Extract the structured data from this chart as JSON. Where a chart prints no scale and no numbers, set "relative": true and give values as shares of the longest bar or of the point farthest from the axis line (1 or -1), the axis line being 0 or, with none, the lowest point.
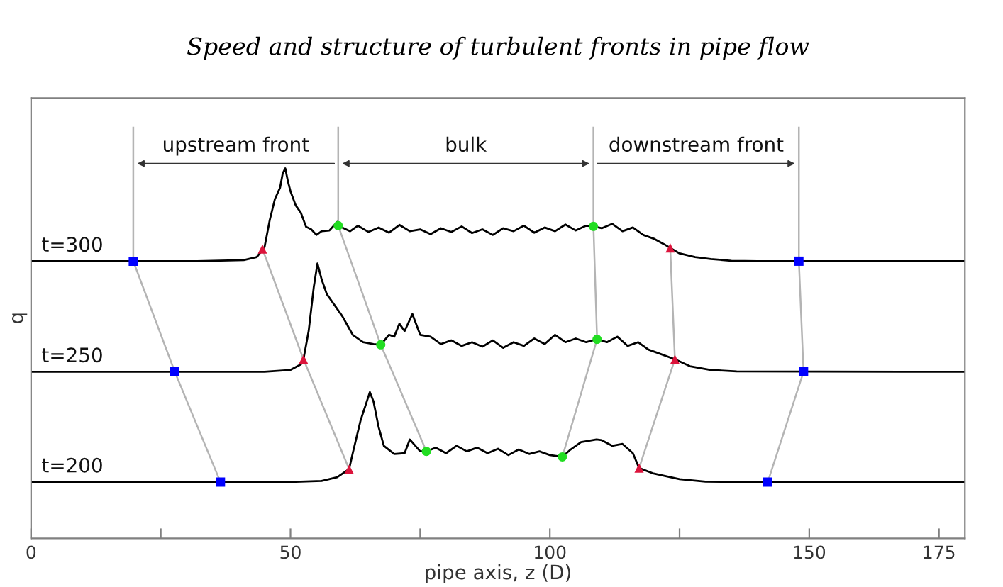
{
  "chart_data": {
    "type": "line",
    "title": "Speed and structure of turbulent fronts in pipe flow",
    "xlabel": "pipe axis, z (D)",
    "ylabel": "q",
    "relative": true,
    "xlim": [
      0,
      180
    ],
    "xticks": [
      0,
      {
        "value": 25,
        "label": null
      },
      50,
      {
        "value": 75,
        "label": null
      },
      100,
      {
        "value": 125,
        "label": null
      },
      150,
      175
    ],
    "grid": false,
    "legend": false,
    "tick_labels": "x",
    "series": [
      {
        "color": "#000000",
        "x": [
          0,
          32,
          41,
          43.5,
          45,
          46,
          47,
          48,
          48.5,
          49,
          49.5,
          50,
          51,
          52,
          53,
          54,
          55,
          56,
          57.5,
          59,
          59.2,
          61.5,
          63,
          65,
          67,
          69,
          71,
          73,
          75,
          77,
          79,
          81,
          83,
          85,
          87,
          89,
          91,
          93,
          95,
          97,
          99,
          101,
          103,
          105,
          107,
          108.4,
          110,
          112,
          114,
          116,
          118,
          120,
          122,
          123.2,
          125,
          128,
          131,
          135,
          140,
          148,
          180
        ],
        "values": [
          0.749,
          0.749,
          0.752,
          0.76,
          0.787,
          0.86,
          0.917,
          0.948,
          0.986,
          1.0,
          0.965,
          0.938,
          0.9,
          0.88,
          0.842,
          0.835,
          0.82,
          0.83,
          0.832,
          0.855,
          0.845,
          0.83,
          0.845,
          0.828,
          0.84,
          0.826,
          0.847,
          0.83,
          0.835,
          0.822,
          0.838,
          0.828,
          0.843,
          0.825,
          0.835,
          0.82,
          0.838,
          0.83,
          0.845,
          0.826,
          0.84,
          0.83,
          0.848,
          0.832,
          0.845,
          0.843,
          0.838,
          0.85,
          0.83,
          0.84,
          0.82,
          0.81,
          0.795,
          0.785,
          0.77,
          0.76,
          0.755,
          0.75,
          0.749,
          0.749,
          0.749
        ]
      },
      {
        "color": "#000000",
        "x": [
          0,
          45,
          50,
          52,
          52.5,
          53.5,
          54.5,
          55.2,
          56,
          57,
          58,
          60,
          62,
          64,
          66,
          67.4,
          69,
          70,
          71,
          72,
          73.5,
          75,
          77,
          79,
          81,
          83,
          85,
          87,
          89,
          91,
          93,
          95,
          97,
          99,
          101,
          103,
          105,
          107,
          109.1,
          111,
          113,
          115,
          117,
          119,
          121,
          124.1,
          127,
          131,
          136,
          180
        ],
        "values": [
          0.45,
          0.45,
          0.455,
          0.47,
          0.484,
          0.56,
          0.68,
          0.743,
          0.7,
          0.66,
          0.64,
          0.6,
          0.55,
          0.53,
          0.525,
          0.523,
          0.55,
          0.545,
          0.58,
          0.56,
          0.606,
          0.55,
          0.545,
          0.525,
          0.535,
          0.52,
          0.53,
          0.518,
          0.535,
          0.515,
          0.53,
          0.52,
          0.54,
          0.525,
          0.55,
          0.53,
          0.54,
          0.53,
          0.538,
          0.53,
          0.545,
          0.52,
          0.53,
          0.51,
          0.5,
          0.484,
          0.465,
          0.455,
          0.451,
          0.45
        ]
      },
      {
        "color": "#000000",
        "x": [
          0,
          50,
          56,
          59,
          61.3,
          62,
          63.5,
          65.3,
          66,
          67,
          68,
          70,
          72,
          73,
          75,
          76.2,
          78,
          80,
          82,
          84,
          86,
          88,
          90,
          92,
          94,
          96,
          98,
          100,
          102.4,
          104,
          106,
          109,
          110,
          112,
          114,
          116,
          117.2,
          120,
          125,
          130,
          142,
          180
        ],
        "values": [
          0.152,
          0.152,
          0.155,
          0.165,
          0.187,
          0.23,
          0.318,
          0.395,
          0.37,
          0.3,
          0.25,
          0.228,
          0.23,
          0.267,
          0.235,
          0.235,
          0.245,
          0.23,
          0.25,
          0.235,
          0.245,
          0.23,
          0.242,
          0.225,
          0.24,
          0.228,
          0.235,
          0.225,
          0.22,
          0.24,
          0.26,
          0.267,
          0.265,
          0.25,
          0.255,
          0.23,
          0.19,
          0.175,
          0.16,
          0.153,
          0.152,
          0.152
        ]
      },
      {
        "type": "line",
        "color": "#b4b4b4",
        "x": [
          19.7,
          27.7,
          36.5
        ],
        "values": [
          0.749,
          0.45,
          0.152
        ]
      },
      {
        "type": "line",
        "color": "#b4b4b4",
        "x": [
          44.6,
          52.5,
          61.3
        ],
        "values": [
          0.782,
          0.484,
          0.187
        ]
      },
      {
        "type": "line",
        "color": "#b4b4b4",
        "x": [
          59.2,
          67.4,
          76.2
        ],
        "values": [
          0.845,
          0.523,
          0.235
        ]
      },
      {
        "type": "line",
        "color": "#b4b4b4",
        "x": [
          108.4,
          109.1,
          102.4
        ],
        "values": [
          0.843,
          0.538,
          0.22
        ]
      },
      {
        "type": "line",
        "color": "#b4b4b4",
        "x": [
          123.2,
          124.1,
          117.2
        ],
        "values": [
          0.785,
          0.484,
          0.19
        ]
      },
      {
        "type": "line",
        "color": "#b4b4b4",
        "x": [
          148,
          148.9,
          142
        ],
        "values": [
          0.749,
          0.45,
          0.152
        ]
      },
      {
        "type": "scatter",
        "marker": "square",
        "color": "#0000ff",
        "x": [
          19.7,
          27.7,
          36.5,
          148,
          148.9,
          142
        ],
        "values": [
          0.749,
          0.45,
          0.152,
          0.749,
          0.45,
          0.152
        ]
      },
      {
        "type": "scatter",
        "marker": "triangle",
        "color": "#dc143c",
        "x": [
          44.6,
          52.5,
          61.3,
          123.2,
          124.1,
          117.2
        ],
        "values": [
          0.782,
          0.484,
          0.187,
          0.785,
          0.484,
          0.19
        ]
      },
      {
        "type": "scatter",
        "marker": "circle",
        "color": "#22dd22",
        "x": [
          59.2,
          67.4,
          76.2,
          108.4,
          109.1,
          102.4
        ],
        "values": [
          0.845,
          0.523,
          0.235,
          0.843,
          0.538,
          0.22
        ]
      }
    ],
    "annotations": [
      "upstream front",
      "bulk",
      "downstream front",
      "t=300",
      "t=250",
      "t=200"
    ]
  }
}
